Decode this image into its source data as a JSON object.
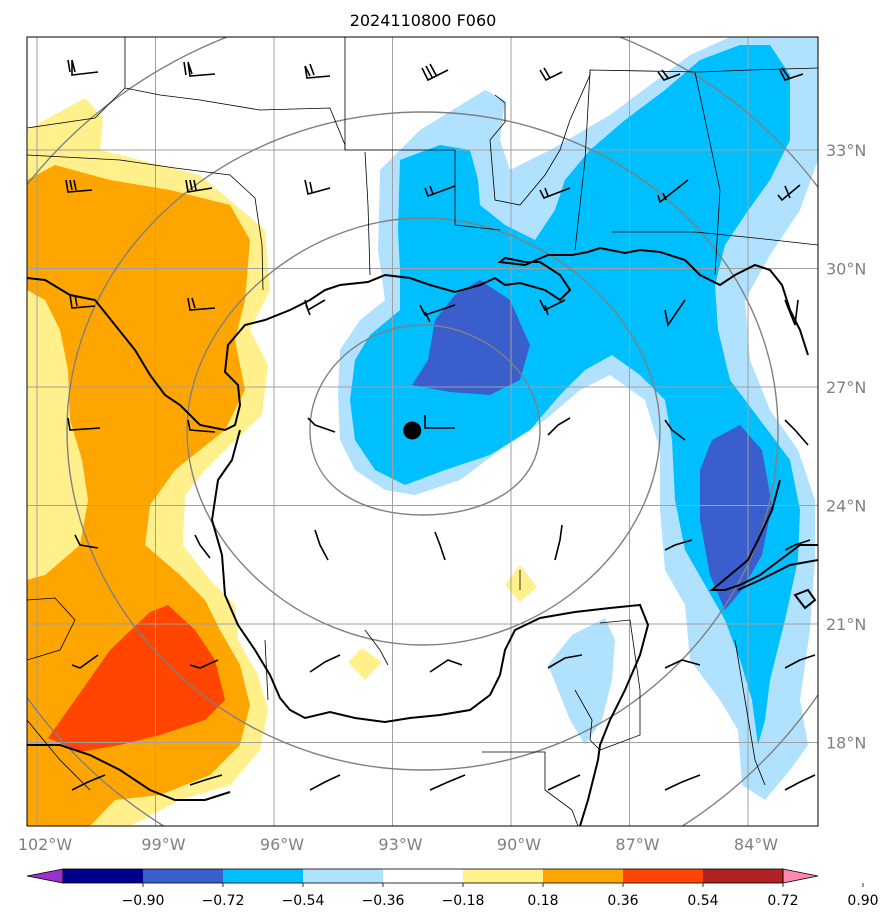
{
  "title": "2024110800 F060",
  "lon_ticks": [
    {
      "lon": -102,
      "label": "102°W"
    },
    {
      "lon": -99,
      "label": "99°W"
    },
    {
      "lon": -96,
      "label": "96°W"
    },
    {
      "lon": -93,
      "label": "93°W"
    },
    {
      "lon": -90,
      "label": "90°W"
    },
    {
      "lon": -87,
      "label": "87°W"
    },
    {
      "lon": -84,
      "label": "84°W"
    }
  ],
  "lat_ticks": [
    {
      "lat": 33,
      "label": "33°N"
    },
    {
      "lat": 30,
      "label": "30°N"
    },
    {
      "lat": 27,
      "label": "27°N"
    },
    {
      "lat": 24,
      "label": "24°N"
    },
    {
      "lat": 21,
      "label": "21°N"
    },
    {
      "lat": 18,
      "label": "18°N"
    }
  ],
  "colorbar": {
    "levels": [
      "−0.90",
      "−0.72",
      "−0.54",
      "−0.36",
      "−0.18",
      "0.18",
      "0.36",
      "0.54",
      "0.72",
      "0.90"
    ],
    "colors": [
      "#9932cc",
      "#00008b",
      "#3a5fcd",
      "#00bfff",
      "#b0e2ff",
      "#ffffff",
      "#fff08c",
      "#ffa500",
      "#ff4500",
      "#b22222",
      "#ff88b0"
    ]
  },
  "storm_center": {
    "lon": -92.5,
    "lat": 25.9
  },
  "colors": {
    "grid": "#a0a0a0",
    "range_rings": "#808080",
    "coastline": "#000000"
  }
}
